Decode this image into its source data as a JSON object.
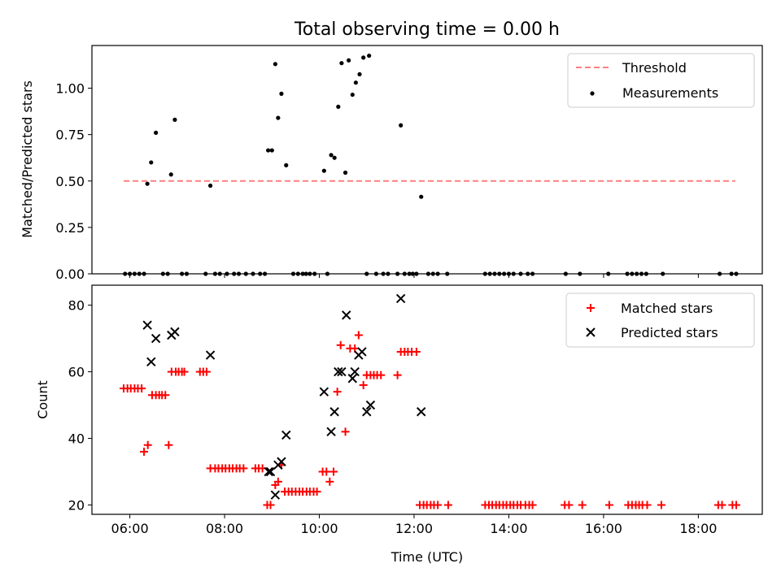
{
  "chart_data": [
    {
      "type": "scatter",
      "title": "Total observing time = 0.00 h",
      "xlabel": "",
      "ylabel": "Matched/Predicted stars",
      "x_unit": "hours",
      "xlim": [
        5.2,
        19.35
      ],
      "ylim": [
        0,
        1.23
      ],
      "yticks": [
        0.0,
        0.25,
        0.5,
        0.75,
        1.0
      ],
      "ytick_labels": [
        "0.00",
        "0.25",
        "0.50",
        "0.75",
        "1.00"
      ],
      "xticks": [
        6,
        8,
        10,
        12,
        14,
        16,
        18
      ],
      "show_xtick_labels": false,
      "grid": false,
      "legend_position": "top-right",
      "colors": {
        "threshold": "#ff7f7f",
        "measurements": "#000000"
      },
      "series": [
        {
          "name": "Threshold",
          "kind": "dashed-line",
          "x": [
            5.87,
            18.78
          ],
          "y": [
            0.5,
            0.5
          ]
        },
        {
          "name": "Measurements",
          "kind": "points",
          "x": [
            5.9,
            6.0,
            6.1,
            6.2,
            6.3,
            6.37,
            6.45,
            6.55,
            6.7,
            6.8,
            6.87,
            6.95,
            7.1,
            7.2,
            7.6,
            7.7,
            7.8,
            7.9,
            8.05,
            8.2,
            8.3,
            8.45,
            8.6,
            8.75,
            8.85,
            8.92,
            9.0,
            9.07,
            9.13,
            9.2,
            9.3,
            9.45,
            9.55,
            9.65,
            9.72,
            9.8,
            9.9,
            10.1,
            10.17,
            10.25,
            10.32,
            10.4,
            10.47,
            10.55,
            10.62,
            10.7,
            10.77,
            10.85,
            10.93,
            11.0,
            11.05,
            11.2,
            11.35,
            11.45,
            11.65,
            11.72,
            11.8,
            11.9,
            11.97,
            12.05,
            12.15,
            12.3,
            12.4,
            12.5,
            12.7,
            13.5,
            13.6,
            13.7,
            13.8,
            13.9,
            14.0,
            14.1,
            14.25,
            14.4,
            14.5,
            15.2,
            15.5,
            16.1,
            16.5,
            16.6,
            16.7,
            16.8,
            16.9,
            17.25,
            18.45,
            18.7,
            18.8
          ],
          "y": [
            0.0,
            0.0,
            0.0,
            0.0,
            0.0,
            0.485,
            0.6,
            0.76,
            0.0,
            0.0,
            0.535,
            0.83,
            0.0,
            0.0,
            0.0,
            0.475,
            0.0,
            0.0,
            0.0,
            0.0,
            0.0,
            0.0,
            0.0,
            0.0,
            0.0,
            0.665,
            0.665,
            1.13,
            0.84,
            0.97,
            0.585,
            0.0,
            0.0,
            0.0,
            0.0,
            0.0,
            0.0,
            0.555,
            0.0,
            0.64,
            0.625,
            0.9,
            1.135,
            0.545,
            1.15,
            0.965,
            1.03,
            1.075,
            1.165,
            0.0,
            1.175,
            0.0,
            0.0,
            0.0,
            0.0,
            0.8,
            0.0,
            0.0,
            0.0,
            0.0,
            0.415,
            0.0,
            0.0,
            0.0,
            0.0,
            0.0,
            0.0,
            0.0,
            0.0,
            0.0,
            0.0,
            0.0,
            0.0,
            0.0,
            0.0,
            0.0,
            0.0,
            0.0,
            0.0,
            0.0,
            0.0,
            0.0,
            0.0,
            0.0,
            0.0,
            0.0,
            0.0
          ]
        }
      ]
    },
    {
      "type": "scatter",
      "title": "",
      "xlabel": "Time (UTC)",
      "ylabel": "Count",
      "x_unit": "hours",
      "xlim": [
        5.2,
        19.35
      ],
      "ylim": [
        17.2,
        86
      ],
      "yticks": [
        20,
        40,
        60,
        80
      ],
      "ytick_labels": [
        "20",
        "40",
        "60",
        "80"
      ],
      "xticks": [
        6,
        8,
        10,
        12,
        14,
        16,
        18
      ],
      "xtick_labels": [
        "06:00",
        "08:00",
        "10:00",
        "12:00",
        "14:00",
        "16:00",
        "18:00"
      ],
      "grid": false,
      "legend_position": "top-right",
      "colors": {
        "matched": "#ff0000",
        "predicted": "#000000"
      },
      "series": [
        {
          "name": "Matched stars",
          "kind": "plus",
          "x": [
            5.87,
            5.95,
            6.02,
            6.1,
            6.17,
            6.25,
            6.3,
            6.38,
            6.47,
            6.55,
            6.62,
            6.68,
            6.75,
            6.82,
            6.88,
            6.97,
            7.03,
            7.1,
            7.15,
            7.48,
            7.55,
            7.62,
            7.7,
            7.8,
            7.87,
            7.95,
            8.02,
            8.1,
            8.17,
            8.25,
            8.32,
            8.4,
            8.65,
            8.72,
            8.8,
            8.9,
            8.97,
            9.07,
            9.13,
            9.2,
            9.27,
            9.35,
            9.42,
            9.5,
            9.58,
            9.65,
            9.73,
            9.8,
            9.88,
            9.95,
            10.07,
            10.15,
            10.22,
            10.3,
            10.38,
            10.45,
            10.55,
            10.65,
            10.75,
            10.83,
            10.93,
            11.0,
            11.08,
            11.15,
            11.22,
            11.3,
            11.65,
            11.72,
            11.8,
            11.87,
            11.95,
            12.05,
            12.12,
            12.2,
            12.27,
            12.35,
            12.42,
            12.5,
            12.72,
            13.5,
            13.58,
            13.65,
            13.73,
            13.8,
            13.88,
            13.95,
            14.03,
            14.1,
            14.18,
            14.25,
            14.35,
            14.43,
            14.5,
            15.18,
            15.27,
            15.55,
            16.12,
            16.52,
            16.6,
            16.68,
            16.75,
            16.82,
            16.92,
            17.22,
            18.42,
            18.5,
            18.72,
            18.8
          ],
          "y": [
            55,
            55,
            55,
            55,
            55,
            55,
            36,
            38,
            53,
            53,
            53,
            53,
            53,
            38,
            60,
            60,
            60,
            60,
            60,
            60,
            60,
            60,
            31,
            31,
            31,
            31,
            31,
            31,
            31,
            31,
            31,
            31,
            31,
            31,
            31,
            20,
            20,
            26,
            27,
            32,
            24,
            24,
            24,
            24,
            24,
            24,
            24,
            24,
            24,
            24,
            30,
            30,
            27,
            30,
            54,
            68,
            42,
            67,
            67,
            71,
            56,
            59,
            59,
            59,
            59,
            59,
            59,
            66,
            66,
            66,
            66,
            66,
            20,
            20,
            20,
            20,
            20,
            20,
            20,
            20,
            20,
            20,
            20,
            20,
            20,
            20,
            20,
            20,
            20,
            20,
            20,
            20,
            20,
            20,
            20,
            20,
            20,
            20,
            20,
            20,
            20,
            20,
            20,
            20,
            20,
            20,
            20,
            20
          ]
        },
        {
          "name": "Predicted stars",
          "kind": "x",
          "x": [
            6.37,
            6.45,
            6.55,
            6.88,
            6.95,
            7.7,
            8.93,
            8.97,
            9.07,
            9.13,
            9.2,
            9.3,
            10.1,
            10.25,
            10.32,
            10.4,
            10.47,
            10.57,
            10.7,
            10.75,
            10.83,
            10.9,
            11.0,
            11.08,
            11.72,
            12.15
          ],
          "y": [
            74,
            63,
            70,
            71,
            72,
            65,
            30,
            30,
            23,
            32,
            33,
            41,
            54,
            42,
            48,
            60,
            60,
            77,
            58,
            60,
            65,
            66,
            48,
            50,
            82,
            48
          ]
        }
      ]
    }
  ]
}
